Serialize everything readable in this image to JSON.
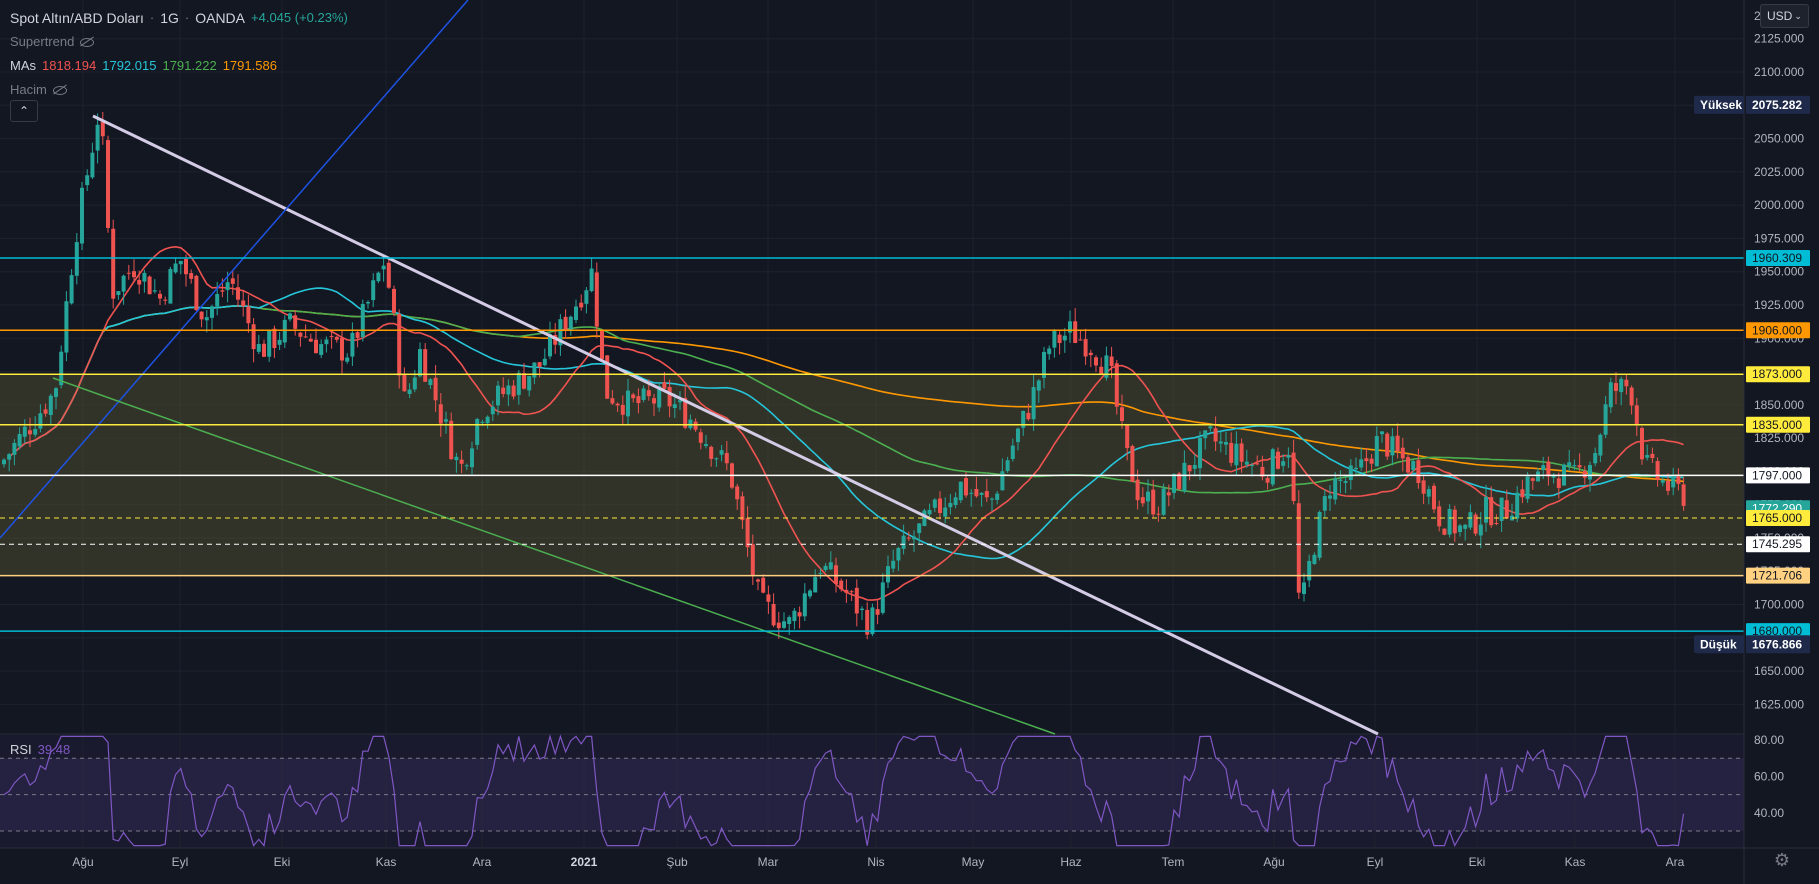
{
  "legend": {
    "symbol": "Spot Altın/ABD Doları",
    "interval": "1G",
    "source": "OANDA",
    "change": "+4.045 (+0.23%)",
    "supertrend_label": "Supertrend",
    "mas_label": "MAs",
    "mas_values": [
      {
        "value": "1818.194",
        "color": "#f05350"
      },
      {
        "value": "1792.015",
        "color": "#26c6da"
      },
      {
        "value": "1791.222",
        "color": "#4caf50"
      },
      {
        "value": "1791.586",
        "color": "#ff9800"
      }
    ],
    "volume_label": "Hacim",
    "collapse_glyph": "⌃"
  },
  "currency_button": {
    "label": "USD"
  },
  "settings_icon": "gear-icon",
  "colors": {
    "background": "#131722",
    "up": "#26a69a",
    "down": "#ef5350",
    "grid": "#1e222d",
    "rsi": "#7e57c2",
    "zone_fill": "#4b4a2f"
  },
  "price_axis": {
    "ticks": [
      "2125.000",
      "2100.000",
      "2075.000",
      "2050.000",
      "2025.000",
      "2000.000",
      "1975.000",
      "1950.000",
      "1925.000",
      "1900.000",
      "1875.000",
      "1850.000",
      "1825.000",
      "1800.000",
      "1775.000",
      "1750.000",
      "1725.000",
      "1700.000",
      "1675.000",
      "1650.000",
      "1625.000"
    ],
    "top_partial": "2150.000",
    "high_label": "Yüksek",
    "high_value": "2075.282",
    "low_label": "Düşük",
    "low_value": "1676.866"
  },
  "levels": [
    {
      "price": 1960.309,
      "label": "1960.309",
      "color": "#00bcd4",
      "text": "#131722",
      "style": "solid"
    },
    {
      "price": 1906.0,
      "label": "1906.000",
      "color": "#ff9800",
      "text": "#131722",
      "style": "solid"
    },
    {
      "price": 1873.0,
      "label": "1873.000",
      "color": "#ffeb3b",
      "text": "#131722",
      "style": "solid"
    },
    {
      "price": 1835.0,
      "label": "1835.000",
      "color": "#ffeb3b",
      "text": "#131722",
      "style": "solid"
    },
    {
      "price": 1797.0,
      "label": "1797.000",
      "color": "#ffffff",
      "text": "#131722",
      "style": "solid"
    },
    {
      "price": 1772.29,
      "label": "1772.290",
      "color": "#26a69a",
      "text": "#ffffff",
      "style": "none"
    },
    {
      "price": 1765.0,
      "label": "1765.000",
      "color": "#ffeb3b",
      "text": "#131722",
      "style": "dashed"
    },
    {
      "price": 1745.295,
      "label": "1745.295",
      "color": "#ffffff",
      "text": "#131722",
      "style": "dashed"
    },
    {
      "price": 1721.706,
      "label": "1721.706",
      "color": "#ffd180",
      "text": "#131722",
      "style": "solid"
    },
    {
      "price": 1680.0,
      "label": "1680.000",
      "color": "#00bcd4",
      "text": "#131722",
      "style": "solid"
    }
  ],
  "time_axis": [
    "Ağu",
    "Eyl",
    "Eki",
    "Kas",
    "Ara",
    "2021",
    "Şub",
    "Mar",
    "Nis",
    "May",
    "Haz",
    "Tem",
    "Ağu",
    "Eyl",
    "Eki",
    "Kas",
    "Ara"
  ],
  "rsi": {
    "label": "RSI",
    "value": "39.48",
    "ticks": [
      "80.00",
      "60.00",
      "40.00"
    ]
  },
  "chart_data": {
    "type": "candlestick",
    "title": "Spot Altın/ABD Doları · 1G · OANDA",
    "ylim": [
      1610,
      2150
    ],
    "x_categories": [
      "Ağu",
      "Eyl",
      "Eki",
      "Kas",
      "Ara",
      "2021",
      "Şub",
      "Mar",
      "Nis",
      "May",
      "Haz",
      "Tem",
      "Ağu",
      "Eyl",
      "Eki",
      "Kas",
      "Ara"
    ],
    "close_path": [
      [
        "Tem 2020",
        1805
      ],
      [
        "Ağu 2020 early",
        1975
      ],
      [
        "Ağu 2020 high",
        2075
      ],
      [
        "Ağu 2020 mid",
        1935
      ],
      [
        "Eyl 2020",
        1945
      ],
      [
        "Eki 2020",
        1890
      ],
      [
        "Kas 2020 early",
        1950
      ],
      [
        "Kas 2020 late",
        1810
      ],
      [
        "Ara 2020 early",
        1840
      ],
      [
        "2021 early",
        1950
      ],
      [
        "Şub 2021",
        1830
      ],
      [
        "Mar 2021",
        1690
      ],
      [
        "Nis 2021",
        1740
      ],
      [
        "May 2021",
        1840
      ],
      [
        "Haz 2021 high",
        1910
      ],
      [
        "Haz 2021 late",
        1770
      ],
      [
        "Tem 2021",
        1815
      ],
      [
        "Ağu 2021 low",
        1685
      ],
      [
        "Eyl 2021",
        1825
      ],
      [
        "Eki 2021",
        1755
      ],
      [
        "Kas 2021 high",
        1870
      ],
      [
        "Ara 2021",
        1782
      ]
    ],
    "series": [
      {
        "name": "MA 1818.194",
        "color": "#f05350"
      },
      {
        "name": "MA 1792.015",
        "color": "#26c6da"
      },
      {
        "name": "MA 1791.222",
        "color": "#4caf50"
      },
      {
        "name": "MA 1791.586",
        "color": "#ff9800"
      }
    ],
    "rsi_range": [
      20,
      85
    ],
    "rsi_last": 39.48
  }
}
